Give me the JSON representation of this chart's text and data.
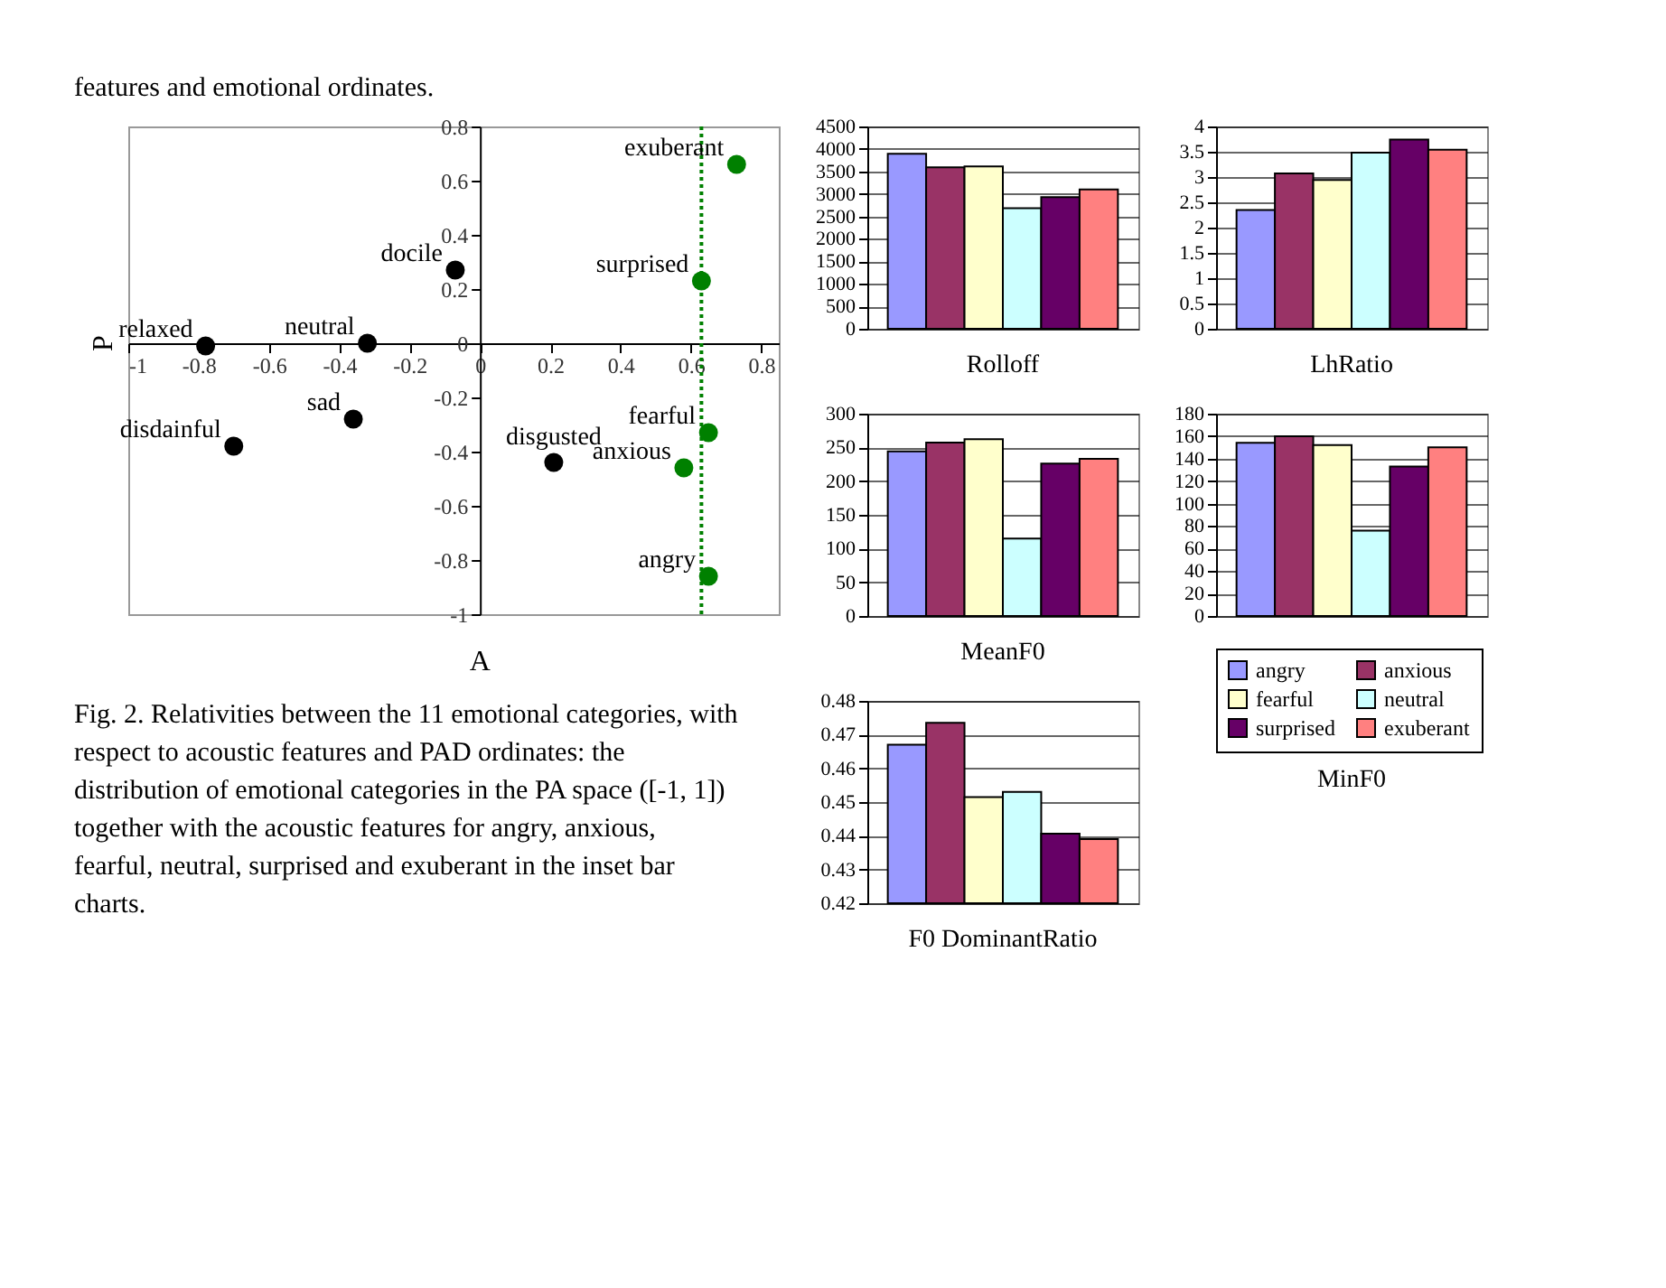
{
  "chart_data": [
    {
      "type": "scatter",
      "xlabel": "A",
      "ylabel": "P",
      "xlim": [
        -1,
        0.85
      ],
      "ylim": [
        -1,
        0.8
      ],
      "xticks": [
        -1,
        -0.8,
        -0.6,
        -0.4,
        -0.2,
        0,
        0.2,
        0.4,
        0.6,
        0.8
      ],
      "yticks": [
        -1,
        -0.8,
        -0.6,
        -0.4,
        -0.2,
        0,
        0.2,
        0.4,
        0.6,
        0.8
      ],
      "marker": "circle",
      "series": [
        {
          "color": "#000000",
          "x": [
            -0.78,
            -0.32,
            -0.07,
            -0.7,
            -0.36,
            0.21
          ],
          "values": [
            -0.01,
            0.0,
            0.27,
            -0.38,
            -0.28,
            -0.44
          ]
        },
        {
          "color": "#008000",
          "x": [
            0.73,
            0.63,
            0.65,
            0.58,
            0.65
          ],
          "values": [
            0.66,
            0.23,
            -0.33,
            -0.46,
            -0.86
          ]
        }
      ],
      "ref_lines": [
        {
          "axis": "x",
          "value": 0.63,
          "color": "#008000",
          "line_style": "dotted"
        }
      ],
      "annotations": [
        "features and emotional ordinates.",
        "Fig. 2. Relativities between the 11 emotional categories, with respect to acoustic features and PAD ordinates: the distribution of emotional categories in the PA space ([-1, 1]) together with the acoustic features for angry, anxious, fearful, neutral, surprised and exuberant in the inset bar charts.",
        {
          "text": "relaxed",
          "x": -0.78,
          "y": -0.01
        },
        {
          "text": "neutral",
          "x": -0.32,
          "y": 0.0
        },
        {
          "text": "docile",
          "x": -0.07,
          "y": 0.27
        },
        {
          "text": "disdainful",
          "x": -0.7,
          "y": -0.38
        },
        {
          "text": "sad",
          "x": -0.36,
          "y": -0.28
        },
        {
          "text": "disgusted",
          "x": 0.21,
          "y": -0.44
        },
        {
          "text": "exuberant",
          "x": 0.73,
          "y": 0.66
        },
        {
          "text": "surprised",
          "x": 0.63,
          "y": 0.23
        },
        {
          "text": "fearful",
          "x": 0.65,
          "y": -0.33
        },
        {
          "text": "anxious",
          "x": 0.58,
          "y": -0.46
        },
        {
          "text": "angry",
          "x": 0.65,
          "y": -0.86
        }
      ]
    },
    {
      "type": "bar",
      "title": "Rolloff",
      "categories": [
        null
      ],
      "ylim": [
        0,
        4500
      ],
      "yticks": [
        0,
        500,
        1000,
        1500,
        2000,
        2500,
        3000,
        3500,
        4000,
        4500
      ],
      "grid": "y",
      "series": [
        {
          "color": "#9999ff",
          "values": [
            3890
          ]
        },
        {
          "color": "#993366",
          "values": [
            3590
          ]
        },
        {
          "color": "#ffffcc",
          "values": [
            3610
          ]
        },
        {
          "color": "#ccffff",
          "values": [
            2680
          ]
        },
        {
          "color": "#660066",
          "values": [
            2930
          ]
        },
        {
          "color": "#ff8080",
          "values": [
            3100
          ]
        }
      ]
    },
    {
      "type": "bar",
      "title": "LhRatio",
      "categories": [
        null
      ],
      "ylim": [
        0,
        4
      ],
      "yticks": [
        0,
        0.5,
        1,
        1.5,
        2,
        2.5,
        3,
        3.5,
        4
      ],
      "grid": "y",
      "series": [
        {
          "color": "#9999ff",
          "values": [
            2.35
          ]
        },
        {
          "color": "#993366",
          "values": [
            3.07
          ]
        },
        {
          "color": "#ffffcc",
          "values": [
            2.94
          ]
        },
        {
          "color": "#ccffff",
          "values": [
            3.48
          ]
        },
        {
          "color": "#660066",
          "values": [
            3.74
          ]
        },
        {
          "color": "#ff8080",
          "values": [
            3.54
          ]
        }
      ]
    },
    {
      "type": "bar",
      "title": "MeanF0",
      "categories": [
        null
      ],
      "ylim": [
        0,
        300
      ],
      "yticks": [
        0,
        50,
        100,
        150,
        200,
        250,
        300
      ],
      "grid": "y",
      "series": [
        {
          "color": "#9999ff",
          "values": [
            244
          ]
        },
        {
          "color": "#993366",
          "values": [
            257
          ]
        },
        {
          "color": "#ffffcc",
          "values": [
            262
          ]
        },
        {
          "color": "#ccffff",
          "values": [
            115
          ]
        },
        {
          "color": "#660066",
          "values": [
            226
          ]
        },
        {
          "color": "#ff8080",
          "values": [
            233
          ]
        }
      ]
    },
    {
      "type": "bar",
      "title": "MinF0",
      "categories": [
        null
      ],
      "ylim": [
        0,
        180
      ],
      "yticks": [
        0,
        20,
        40,
        60,
        80,
        100,
        120,
        140,
        160,
        180
      ],
      "grid": "y",
      "legend": "bottom",
      "series": [
        {
          "name": "angry",
          "color": "#9999ff",
          "values": [
            154
          ]
        },
        {
          "name": "anxious",
          "color": "#993366",
          "values": [
            160
          ]
        },
        {
          "name": "fearful",
          "color": "#ffffcc",
          "values": [
            152
          ]
        },
        {
          "name": "neutral",
          "color": "#ccffff",
          "values": [
            76
          ]
        },
        {
          "name": "surprised",
          "color": "#660066",
          "values": [
            133
          ]
        },
        {
          "name": "exuberant",
          "color": "#ff8080",
          "values": [
            150
          ]
        }
      ]
    },
    {
      "type": "bar",
      "title": "F0 DominantRatio",
      "categories": [
        null
      ],
      "ylim": [
        0.42,
        0.48
      ],
      "yticks": [
        0.42,
        0.43,
        0.44,
        0.45,
        0.46,
        0.47,
        0.48
      ],
      "grid": "y",
      "series": [
        {
          "color": "#9999ff",
          "values": [
            0.467
          ]
        },
        {
          "color": "#993366",
          "values": [
            0.4735
          ]
        },
        {
          "color": "#ffffcc",
          "values": [
            0.4515
          ]
        },
        {
          "color": "#ccffff",
          "values": [
            0.453
          ]
        },
        {
          "color": "#660066",
          "values": [
            0.4406
          ]
        },
        {
          "color": "#ff8080",
          "values": [
            0.439
          ]
        }
      ]
    }
  ]
}
